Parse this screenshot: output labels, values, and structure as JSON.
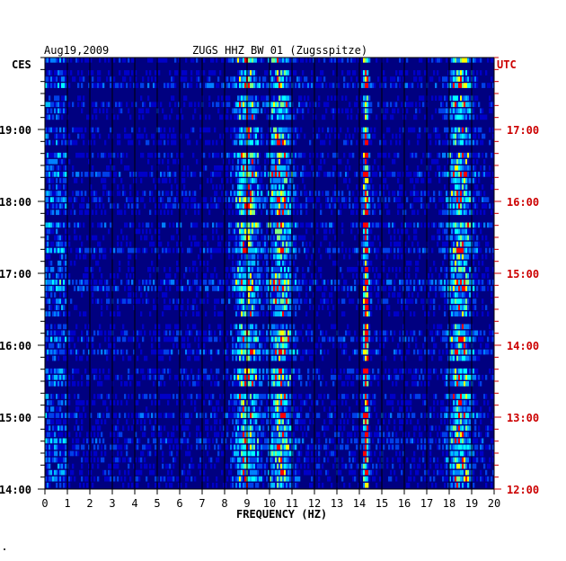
{
  "chart_data": {
    "type": "heatmap",
    "title": "ZUGS HHZ BW 01 (Zugsspitze)",
    "date": "Aug19,2009",
    "xlabel": "FREQUENCY (HZ)",
    "xlim": [
      0,
      20
    ],
    "x_ticks": [
      "0",
      "1",
      "2",
      "3",
      "4",
      "5",
      "6",
      "7",
      "8",
      "9",
      "10",
      "11",
      "12",
      "13",
      "14",
      "15",
      "16",
      "17",
      "18",
      "19",
      "20"
    ],
    "left_axis_label": "CES",
    "right_axis_label": "UTC",
    "left_time_ticks": [
      "19:00",
      "18:00",
      "17:00",
      "16:00",
      "15:00",
      "14:00"
    ],
    "right_time_ticks": [
      "17:00",
      "16:00",
      "15:00",
      "14:00",
      "13:00",
      "12:00"
    ],
    "time_range_local": [
      "14:00",
      "19:40"
    ],
    "rows": 68,
    "features": [
      {
        "frequency_hz": 14.3,
        "description": "persistent narrow spectral line"
      },
      {
        "frequency_hz": 9.0,
        "description": "energy band, strongest near 14:00-14:40"
      },
      {
        "frequency_hz": 18.5,
        "description": "broad energy band at high frequency"
      },
      {
        "frequency_hz": 10.5,
        "description": "intermittent energy band"
      }
    ],
    "colors": {
      "background": "#000080",
      "low": "#0000c8",
      "mid": "#0080ff",
      "high": "#00ffff",
      "peak": "#ffff00",
      "max": "#ff0000",
      "utc_text": "#cc0000",
      "grid": "#000000"
    }
  }
}
